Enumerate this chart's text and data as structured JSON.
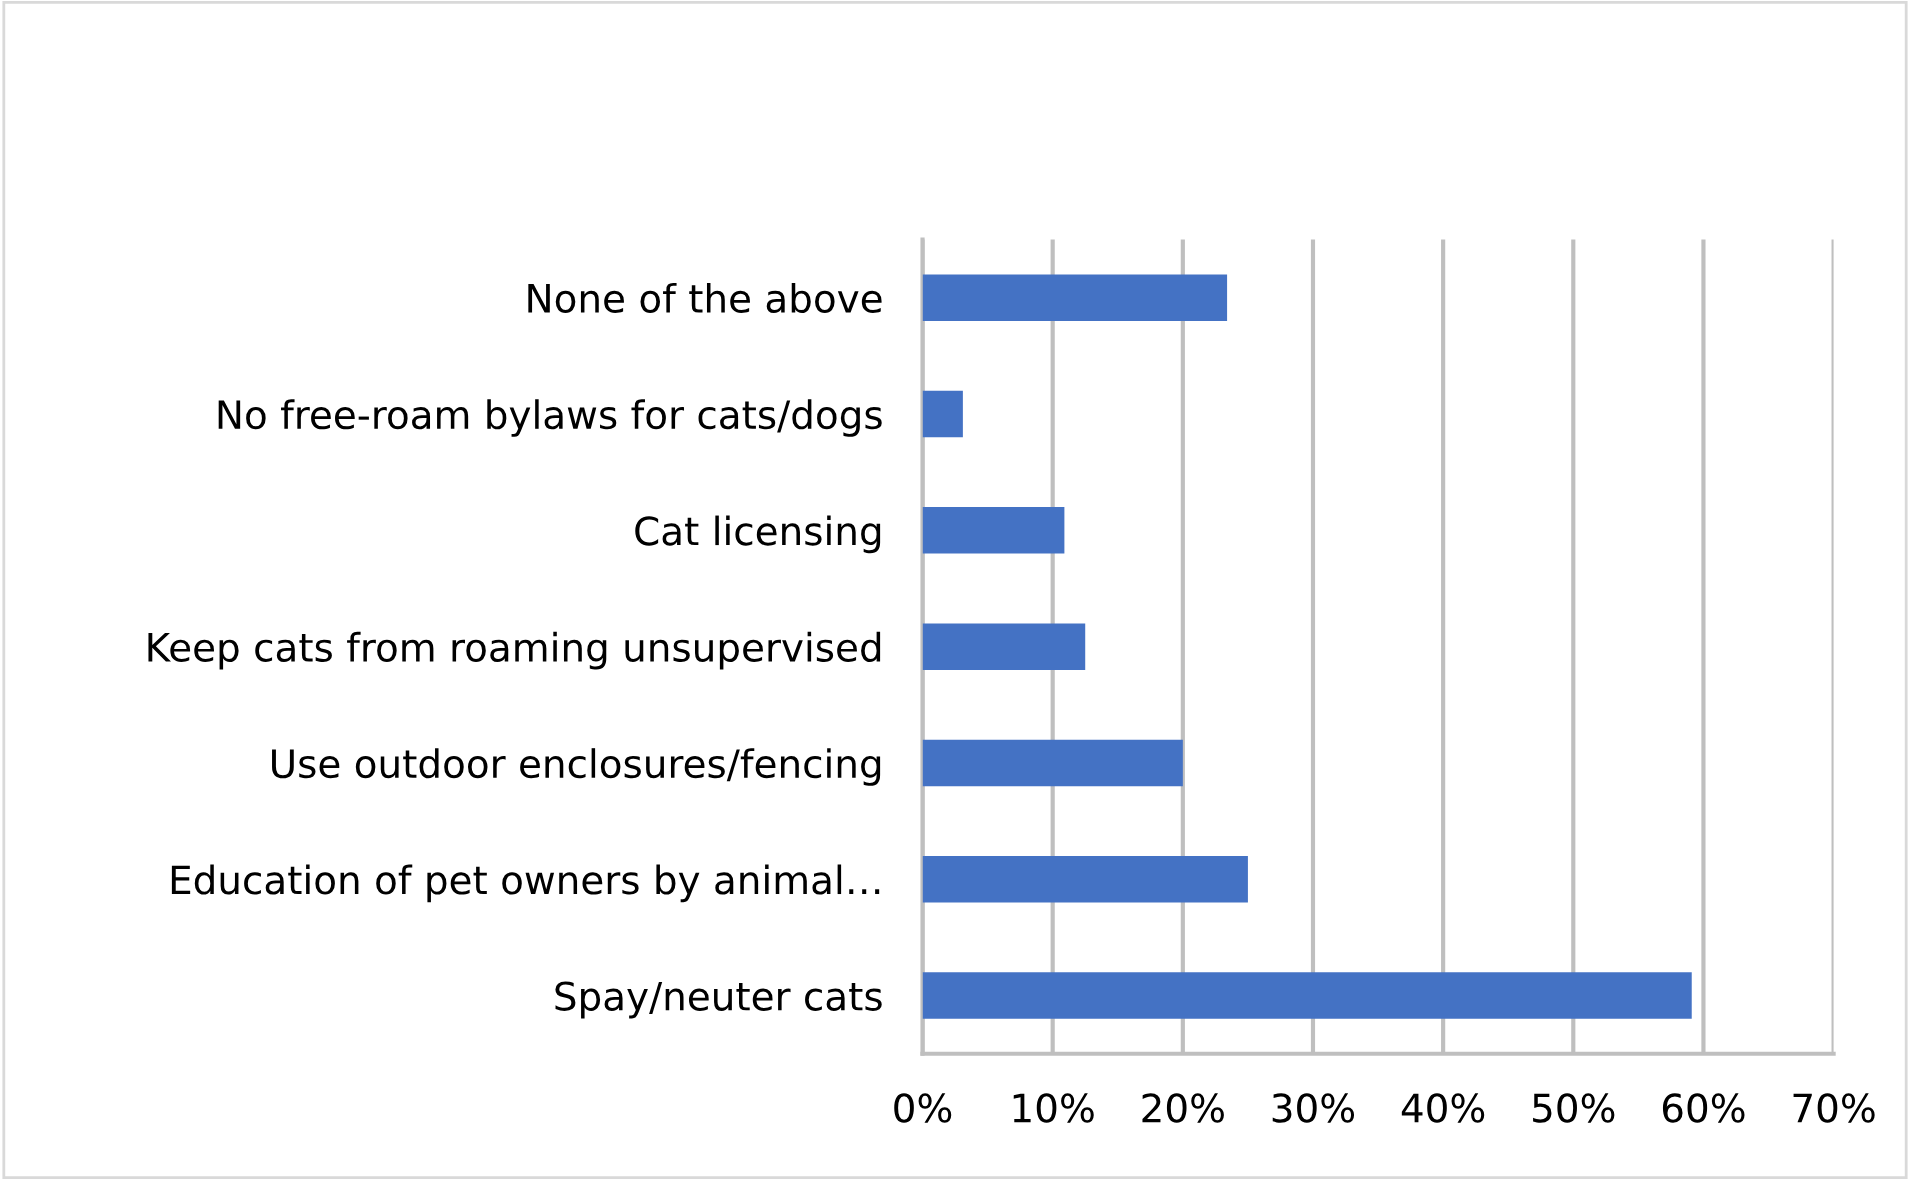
{
  "chart_data": {
    "type": "bar",
    "orientation": "horizontal",
    "categories": [
      "None of the above",
      "No free-roam bylaws for cats/dogs",
      "Cat licensing",
      "Keep cats from roaming unsupervised",
      "Use outdoor enclosures/fencing",
      "Education of pet owners by animal…",
      "Spay/neuter cats"
    ],
    "values": [
      23.4,
      3.1,
      10.9,
      12.5,
      20,
      25,
      59.1
    ],
    "color": "#4472c4",
    "xlim": [
      0,
      70
    ],
    "xticks": [
      {
        "value": 0,
        "label": "0%"
      },
      {
        "value": 10,
        "label": "10%"
      },
      {
        "value": 20,
        "label": "20%"
      },
      {
        "value": 30,
        "label": "30%"
      },
      {
        "value": 40,
        "label": "40%"
      },
      {
        "value": 50,
        "label": "50%"
      },
      {
        "value": 60,
        "label": "60%"
      },
      {
        "value": 70,
        "label": "70%"
      }
    ],
    "grid": "x",
    "legend": false
  }
}
